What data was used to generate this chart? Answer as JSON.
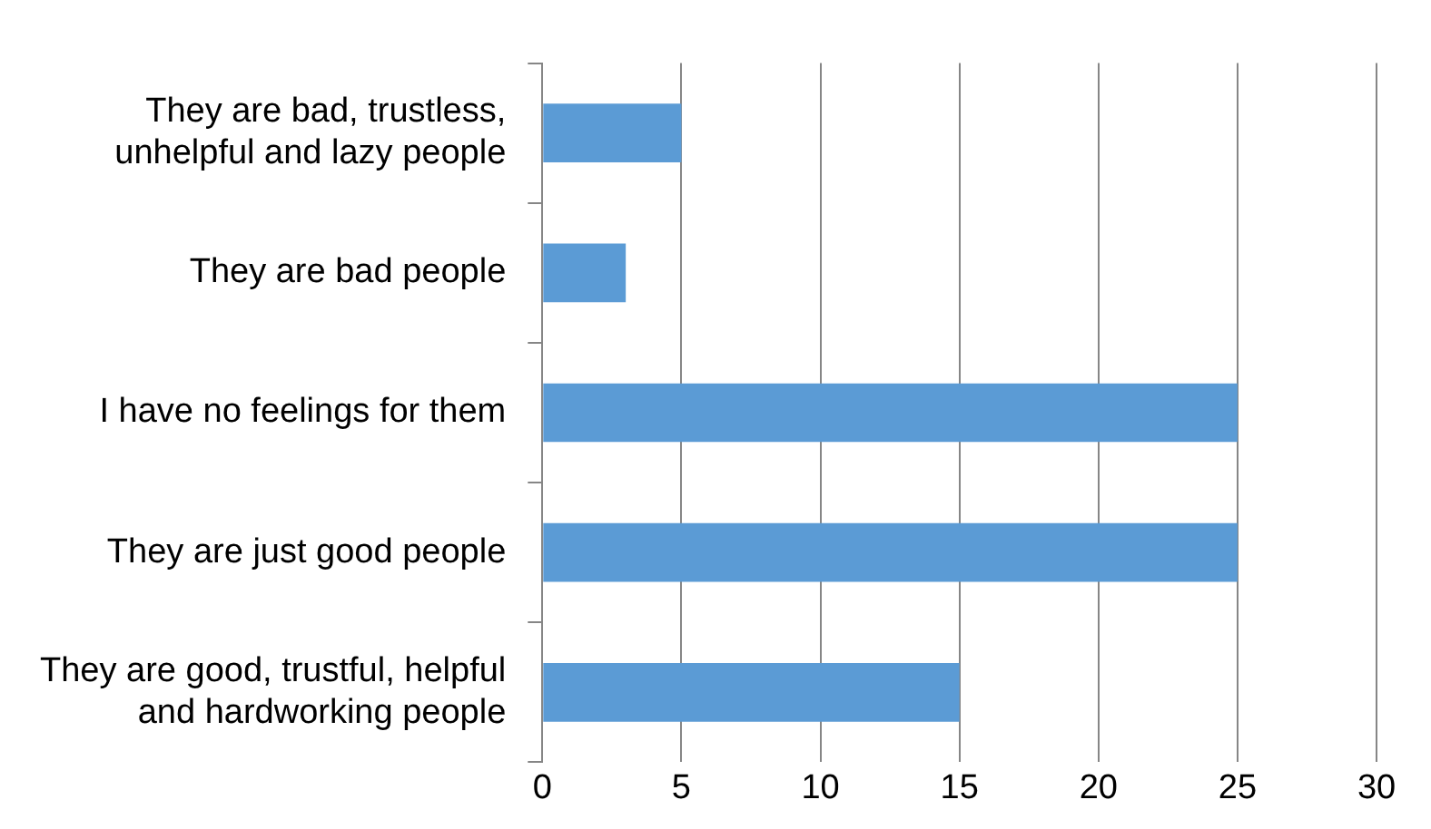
{
  "chart_data": {
    "type": "bar",
    "orientation": "horizontal",
    "categories": [
      "They are bad, trustless, unhelpful and lazy people",
      "They are bad people",
      "I have no feelings for them",
      "They are just good people",
      "They are good, trustful, helpful and hardworking people"
    ],
    "values": [
      5,
      3,
      25,
      25,
      15
    ],
    "color": "#5b9bd5",
    "xlim": [
      0,
      30
    ],
    "xticks": [
      0,
      5,
      10,
      15,
      20,
      25,
      30
    ],
    "grid": "x",
    "legend": false
  }
}
